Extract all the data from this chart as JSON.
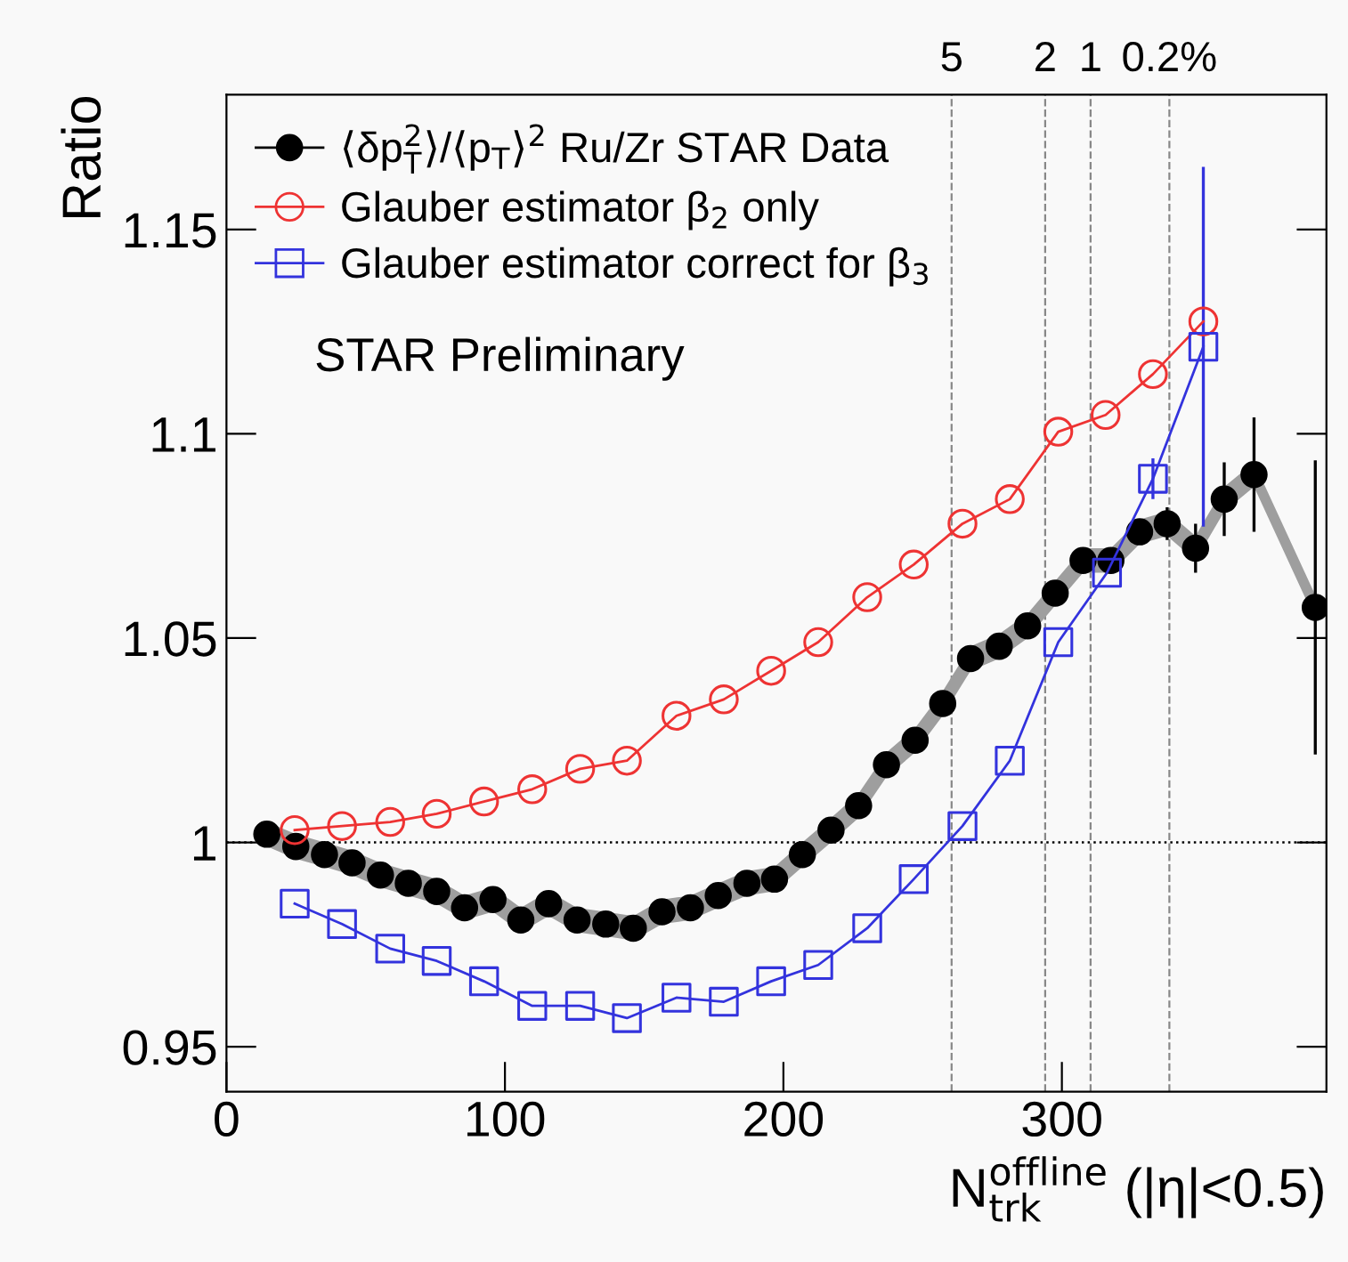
{
  "chart_data": {
    "type": "line",
    "xlabel": "N$^{offline}$$_{trk}$ (|η|<0.5)",
    "ylabel": "Ratio",
    "xlim": [
      0,
      395
    ],
    "ylim": [
      0.939,
      1.183
    ],
    "xticks": [
      0,
      100,
      200,
      300
    ],
    "yticks": [
      {
        "value": 0.95,
        "label": "0.95"
      },
      1,
      {
        "value": 1.05,
        "label": "1.05"
      },
      {
        "value": 1.1,
        "label": "1.1"
      },
      {
        "value": 1.15,
        "label": "1.15"
      }
    ],
    "grid": false,
    "legend": "top left",
    "annotations": [
      "STAR Preliminary",
      {
        "text": "5",
        "x": 260.4,
        "y": 1.183
      },
      {
        "text": "2",
        "x": 294,
        "y": 1.183
      },
      {
        "text": "1",
        "x": 310.3,
        "y": 1.183
      },
      {
        "text": "0.2%",
        "x": 338.6,
        "y": 1.183
      }
    ],
    "ref_lines": [
      {
        "axis": "y",
        "value": 1,
        "color": "#000000",
        "line_style": "dotted"
      },
      {
        "axis": "x",
        "value": 260.4,
        "color": "#888888",
        "line_style": "dashed"
      },
      {
        "axis": "x",
        "value": 294,
        "color": "#888888",
        "line_style": "dashed"
      },
      {
        "axis": "x",
        "value": 310.3,
        "color": "#888888",
        "line_style": "dashed"
      },
      {
        "axis": "x",
        "value": 338.6,
        "color": "#888888",
        "line_style": "dashed"
      }
    ],
    "series": [
      {
        "name": "⟨δp$^{2}$$_{T}$⟩/⟨p$_{T}$⟩$^{2}$ Ru/Zr STAR Data",
        "type": "scatter",
        "marker": "circle",
        "color": "#000000",
        "x": [
          14.5,
          24.9,
          35.2,
          45.1,
          55.3,
          65.3,
          75.5,
          85.5,
          95.7,
          105.7,
          115.7,
          125.9,
          136.2,
          146.1,
          156.4,
          166.6,
          176.6,
          186.9,
          196.8,
          206.8,
          217.1,
          227.0,
          237.0,
          247.3,
          257.2,
          267.2,
          277.5,
          287.7,
          297.6,
          307.6,
          317.6,
          327.9,
          337.8,
          348.0,
          358.3,
          369.0,
          391.0
        ],
        "values": [
          1.002,
          0.999,
          0.997,
          0.995,
          0.992,
          0.99,
          0.988,
          0.984,
          0.986,
          0.981,
          0.985,
          0.981,
          0.98,
          0.979,
          0.983,
          0.984,
          0.987,
          0.99,
          0.991,
          0.997,
          1.003,
          1.009,
          1.019,
          1.025,
          1.034,
          1.045,
          1.048,
          1.053,
          1.061,
          1.069,
          1.069,
          1.076,
          1.078,
          1.072,
          1.084,
          1.09,
          1.0575
        ],
        "lower": [
          0.999,
          0.996,
          0.994,
          0.992,
          0.989,
          0.987,
          0.985,
          0.981,
          0.983,
          0.978,
          0.982,
          0.978,
          0.977,
          0.976,
          0.98,
          0.981,
          0.984,
          0.987,
          0.988,
          0.994,
          1.0,
          1.006,
          1.016,
          1.022,
          1.031,
          1.042,
          1.045,
          1.05,
          1.058,
          1.066,
          1.066,
          1.073,
          1.075,
          1.069,
          1.081,
          1.087,
          1.0545
        ],
        "upper": [
          1.005,
          1.002,
          1.0,
          0.998,
          0.995,
          0.993,
          0.991,
          0.987,
          0.989,
          0.984,
          0.988,
          0.984,
          0.983,
          0.982,
          0.986,
          0.987,
          0.99,
          0.993,
          0.994,
          1.0,
          1.006,
          1.012,
          1.022,
          1.028,
          1.037,
          1.048,
          1.051,
          1.056,
          1.064,
          1.072,
          1.072,
          1.079,
          1.081,
          1.075,
          1.087,
          1.093,
          1.0605
        ],
        "errors": [
          null,
          null,
          null,
          null,
          null,
          null,
          null,
          null,
          null,
          null,
          null,
          null,
          null,
          null,
          null,
          null,
          null,
          null,
          null,
          null,
          null,
          null,
          null,
          null,
          null,
          null,
          null,
          null,
          null,
          null,
          null,
          null,
          0.004,
          0.006,
          0.009,
          0.014,
          0.036
        ]
      },
      {
        "name": "Glauber estimator β$_{2}$ only",
        "marker": "circle",
        "color": "#ee3333",
        "x": [
          24.5,
          41.5,
          58.8,
          75.5,
          92.5,
          109.8,
          127.0,
          143.8,
          161.6,
          178.6,
          195.6,
          212.5,
          230.1,
          246.8,
          264.3,
          281.3,
          298.7,
          315.7,
          332.7,
          350.8
        ],
        "values": [
          1.003,
          1.004,
          1.005,
          1.007,
          1.01,
          1.013,
          1.018,
          1.02,
          1.031,
          1.035,
          1.042,
          1.049,
          1.06,
          1.068,
          1.078,
          1.084,
          1.1005,
          1.1046,
          1.1146,
          1.1275
        ]
      },
      {
        "name": "Glauber estimator correct for β$_{3}$",
        "marker": "square",
        "color": "#3333dd",
        "x": [
          24.5,
          41.5,
          58.8,
          75.5,
          92.5,
          109.8,
          127.0,
          143.8,
          161.6,
          178.6,
          195.6,
          212.5,
          230.1,
          246.8,
          264.3,
          281.3,
          298.7,
          316.2,
          332.7,
          350.8
        ],
        "values": [
          0.985,
          0.98,
          0.974,
          0.971,
          0.966,
          0.96,
          0.96,
          0.957,
          0.962,
          0.961,
          0.966,
          0.97,
          0.979,
          0.991,
          1.004,
          1.02,
          1.049,
          1.066,
          1.089,
          1.1213
        ],
        "errors": [
          null,
          null,
          null,
          null,
          null,
          null,
          null,
          null,
          null,
          null,
          null,
          null,
          null,
          null,
          null,
          null,
          null,
          null,
          0.005,
          0.044
        ]
      }
    ]
  }
}
